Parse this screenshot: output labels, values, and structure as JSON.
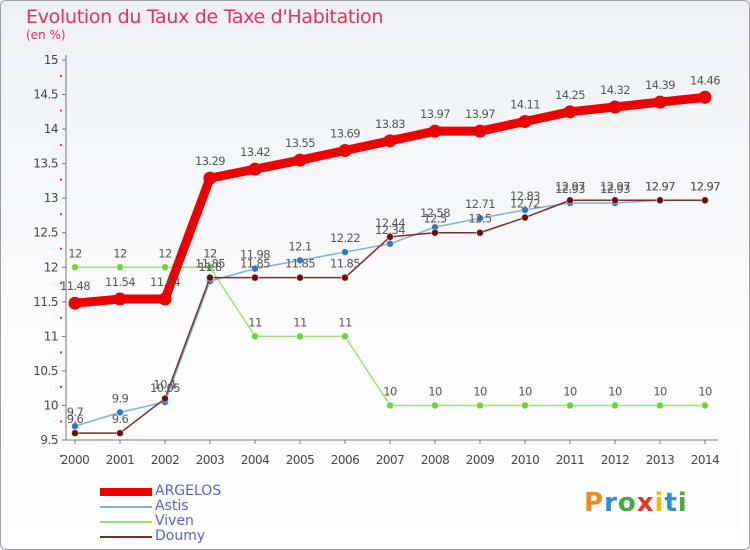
{
  "title": "Evolution du Taux de Taxe d'Habitation",
  "subtitle": "(en %)",
  "logo": {
    "text": "Proxiti",
    "colors": [
      "#f08a1e",
      "#2e8fd8",
      "#3cb043",
      "#e8332a",
      "#f5b800",
      "#2e8fd8",
      "#3cb043"
    ]
  },
  "chart_data": {
    "type": "line",
    "x": [
      "2000",
      "2001",
      "2002",
      "2003",
      "2004",
      "2005",
      "2006",
      "2007",
      "2008",
      "2009",
      "2010",
      "2011",
      "2012",
      "2013",
      "2014"
    ],
    "ylim": [
      9.5,
      15
    ],
    "yticks": [
      "9.5",
      "10",
      "10.5",
      "11",
      "11.5",
      "12",
      "12.5",
      "13",
      "13.5",
      "14",
      "14.5",
      "15"
    ],
    "grid": false,
    "legend_position": "bottom-left",
    "series": [
      {
        "name": "ARGELOS",
        "color": "#ee0000",
        "marker": "#ee0000",
        "width": 9,
        "values": [
          11.48,
          11.54,
          11.54,
          13.29,
          13.42,
          13.55,
          13.69,
          13.83,
          13.97,
          13.97,
          14.11,
          14.25,
          14.32,
          14.39,
          14.46
        ],
        "labels": [
          "11.48",
          "11.54",
          "11.54",
          "13.29",
          "13.42",
          "13.55",
          "13.69",
          "13.83",
          "13.97",
          "13.97",
          "14.11",
          "14.25",
          "14.32",
          "14.39",
          "14.46"
        ]
      },
      {
        "name": "Astis",
        "color": "#7fb0d8",
        "marker": "#2e78c8",
        "width": 1.5,
        "values": [
          9.7,
          9.9,
          10.05,
          11.8,
          11.98,
          12.1,
          12.22,
          12.34,
          12.58,
          12.71,
          12.83,
          12.93,
          12.93,
          12.97,
          12.97
        ],
        "labels": [
          "9.7",
          "9.9",
          "10.05",
          "11.8",
          "11.98",
          "12.1",
          "12.22",
          "12.34",
          "12.58",
          "12.71",
          "12.83",
          "12.93",
          "12.93",
          "12.97",
          "12.97"
        ]
      },
      {
        "name": "Viven",
        "color": "#9ee07a",
        "marker": "#6dd23c",
        "width": 1.5,
        "values": [
          12,
          12,
          12,
          12,
          11,
          11,
          11,
          10,
          10,
          10,
          10,
          10,
          10,
          10,
          10
        ],
        "labels": [
          "12",
          "12",
          "12",
          "12",
          "11",
          "11",
          "11",
          "10",
          "10",
          "10",
          "10",
          "10",
          "10",
          "10",
          "10"
        ]
      },
      {
        "name": "Doumy",
        "color": "#7a2e2e",
        "marker": "#6a1010",
        "width": 1.5,
        "values": [
          9.6,
          9.6,
          10.1,
          11.85,
          11.85,
          11.85,
          11.85,
          12.44,
          12.5,
          12.5,
          12.72,
          12.97,
          12.97,
          12.97,
          12.97
        ],
        "labels": [
          "9.6",
          "9.6",
          "10.1",
          "11.85",
          "11.85",
          "11.85",
          "11.85",
          "12.44",
          "12.5",
          "12.5",
          "12.72",
          "12.97",
          "12.97",
          "12.97",
          "12.97"
        ]
      }
    ]
  }
}
